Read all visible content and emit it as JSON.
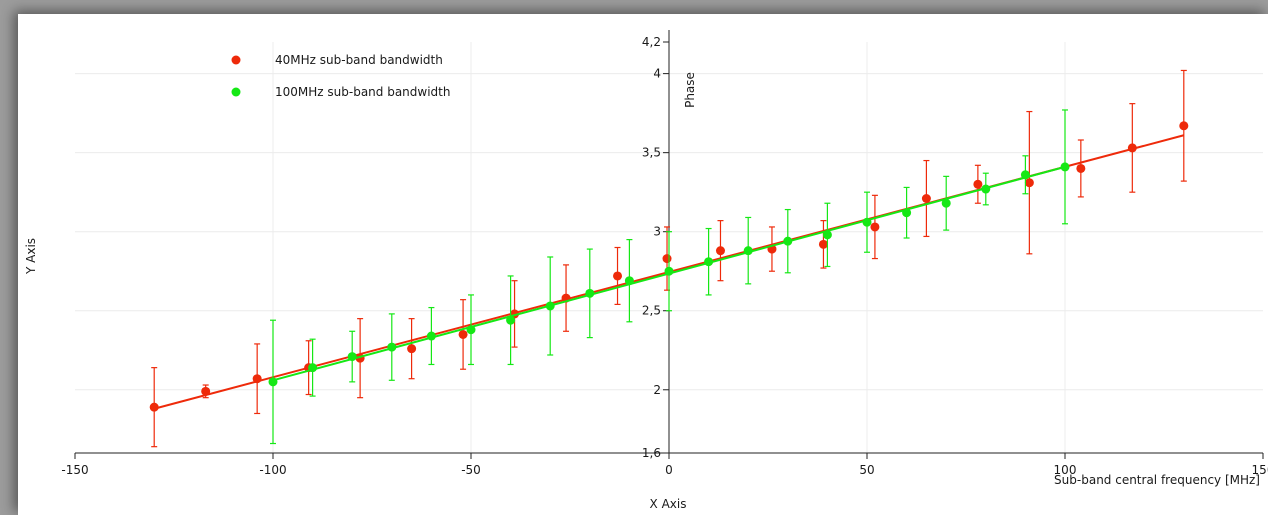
{
  "chart_data": {
    "type": "scatter",
    "title": "",
    "xlabel": "Sub-band central frequency [MHz]",
    "ylabel": "Phase",
    "x_axis_caption": "X Axis",
    "y_axis_caption": "Y Axis",
    "xlim": [
      -150,
      150
    ],
    "ylim": [
      1.6,
      4.2
    ],
    "x_ticks": [
      {
        "value": -150,
        "label": "-150"
      },
      {
        "value": -100,
        "label": "-100"
      },
      {
        "value": -50,
        "label": "-50"
      },
      {
        "value": 0,
        "label": "0"
      },
      {
        "value": 50,
        "label": "50"
      },
      {
        "value": 100,
        "label": "100"
      },
      {
        "value": 150,
        "label": "150"
      }
    ],
    "y_ticks": [
      {
        "value": 1.6,
        "label": "1,6"
      },
      {
        "value": 2,
        "label": "2"
      },
      {
        "value": 2.5,
        "label": "2,5"
      },
      {
        "value": 3,
        "label": "3"
      },
      {
        "value": 3.5,
        "label": "3,5"
      },
      {
        "value": 4,
        "label": "4"
      },
      {
        "value": 4.2,
        "label": "4,2"
      }
    ],
    "grid": true,
    "legend_position": "top-left",
    "series": [
      {
        "name": "40MHz sub-band bandwidth",
        "color": "#ee2a0a",
        "fit": {
          "x": [
            -130,
            130
          ],
          "y": [
            1.88,
            3.61
          ]
        },
        "points": [
          {
            "x": -130,
            "y": 1.89,
            "err": 0.25
          },
          {
            "x": -117,
            "y": 1.99,
            "err": 0.04
          },
          {
            "x": -104,
            "y": 2.07,
            "err": 0.22
          },
          {
            "x": -91,
            "y": 2.14,
            "err": 0.17
          },
          {
            "x": -78,
            "y": 2.2,
            "err": 0.25
          },
          {
            "x": -65,
            "y": 2.26,
            "err": 0.19
          },
          {
            "x": -52,
            "y": 2.35,
            "err": 0.22
          },
          {
            "x": -39,
            "y": 2.48,
            "err": 0.21
          },
          {
            "x": -26,
            "y": 2.58,
            "err": 0.21
          },
          {
            "x": -13,
            "y": 2.72,
            "err": 0.18
          },
          {
            "x": -0.5,
            "y": 2.83,
            "err": 0.2
          },
          {
            "x": 13,
            "y": 2.88,
            "err": 0.19
          },
          {
            "x": 26,
            "y": 2.89,
            "err": 0.14
          },
          {
            "x": 39,
            "y": 2.92,
            "err": 0.15
          },
          {
            "x": 52,
            "y": 3.03,
            "err": 0.2
          },
          {
            "x": 65,
            "y": 3.21,
            "err": 0.24
          },
          {
            "x": 78,
            "y": 3.3,
            "err": 0.12
          },
          {
            "x": 91,
            "y": 3.31,
            "err": 0.45
          },
          {
            "x": 104,
            "y": 3.4,
            "err": 0.18
          },
          {
            "x": 117,
            "y": 3.53,
            "err": 0.28
          },
          {
            "x": 130,
            "y": 3.67,
            "err": 0.35
          }
        ]
      },
      {
        "name": "100MHz sub-band bandwidth",
        "color": "#15e815",
        "fit": {
          "x": [
            -100,
            100
          ],
          "y": [
            2.06,
            3.41
          ]
        },
        "points": [
          {
            "x": -100,
            "y": 2.05,
            "err": 0.39
          },
          {
            "x": -90,
            "y": 2.14,
            "err": 0.18
          },
          {
            "x": -80,
            "y": 2.21,
            "err": 0.16
          },
          {
            "x": -70,
            "y": 2.27,
            "err": 0.21
          },
          {
            "x": -60,
            "y": 2.34,
            "err": 0.18
          },
          {
            "x": -50,
            "y": 2.38,
            "err": 0.22
          },
          {
            "x": -40,
            "y": 2.44,
            "err": 0.28
          },
          {
            "x": -30,
            "y": 2.53,
            "err": 0.31
          },
          {
            "x": -20,
            "y": 2.61,
            "err": 0.28
          },
          {
            "x": -10,
            "y": 2.69,
            "err": 0.26
          },
          {
            "x": 0,
            "y": 2.75,
            "err": 0.25
          },
          {
            "x": 10,
            "y": 2.81,
            "err": 0.21
          },
          {
            "x": 20,
            "y": 2.88,
            "err": 0.21
          },
          {
            "x": 30,
            "y": 2.94,
            "err": 0.2
          },
          {
            "x": 40,
            "y": 2.98,
            "err": 0.2
          },
          {
            "x": 50,
            "y": 3.06,
            "err": 0.19
          },
          {
            "x": 60,
            "y": 3.12,
            "err": 0.16
          },
          {
            "x": 70,
            "y": 3.18,
            "err": 0.17
          },
          {
            "x": 80,
            "y": 3.27,
            "err": 0.1
          },
          {
            "x": 90,
            "y": 3.36,
            "err": 0.12
          },
          {
            "x": 100,
            "y": 3.41,
            "err": 0.36
          }
        ]
      }
    ]
  }
}
